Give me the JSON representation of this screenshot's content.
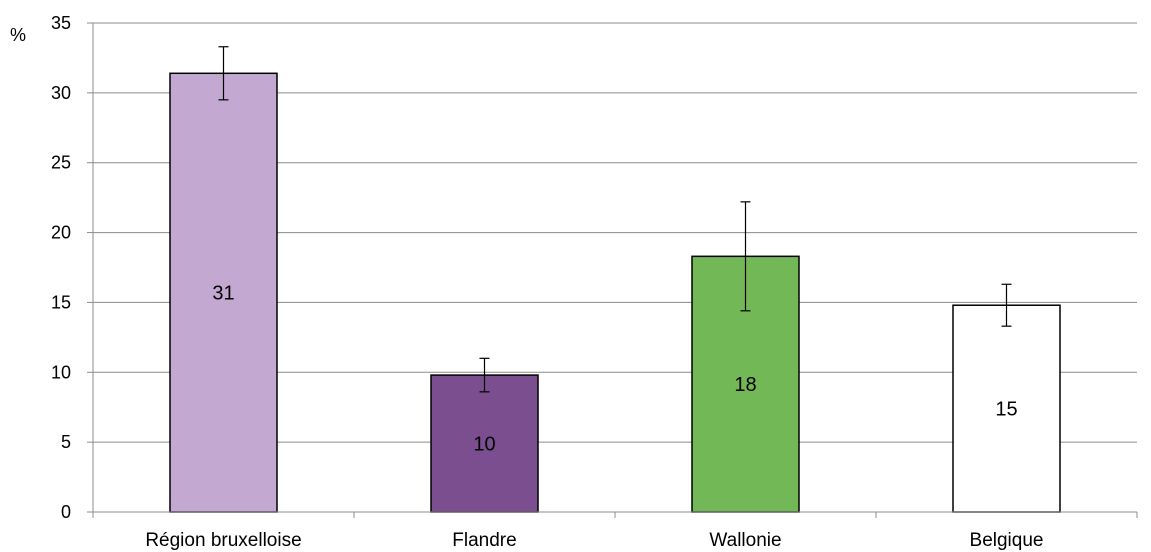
{
  "chart_data": {
    "type": "bar",
    "ylabel": "%",
    "ylim": [
      0,
      35
    ],
    "yticks": [
      0,
      5,
      10,
      15,
      20,
      25,
      30,
      35
    ],
    "grid": true,
    "categories": [
      "Région bruxelloise",
      "Flandre",
      "Wallonie",
      "Belgique"
    ],
    "values": [
      31.4,
      9.8,
      18.3,
      14.8
    ],
    "data_labels": [
      "31",
      "10",
      "18",
      "15"
    ],
    "error_low": [
      29.5,
      8.6,
      14.4,
      13.3
    ],
    "error_high": [
      33.3,
      11.0,
      22.2,
      16.3
    ],
    "colors": [
      "#c3a9d1",
      "#7a4e8f",
      "#73b857",
      "#ffffff"
    ]
  }
}
